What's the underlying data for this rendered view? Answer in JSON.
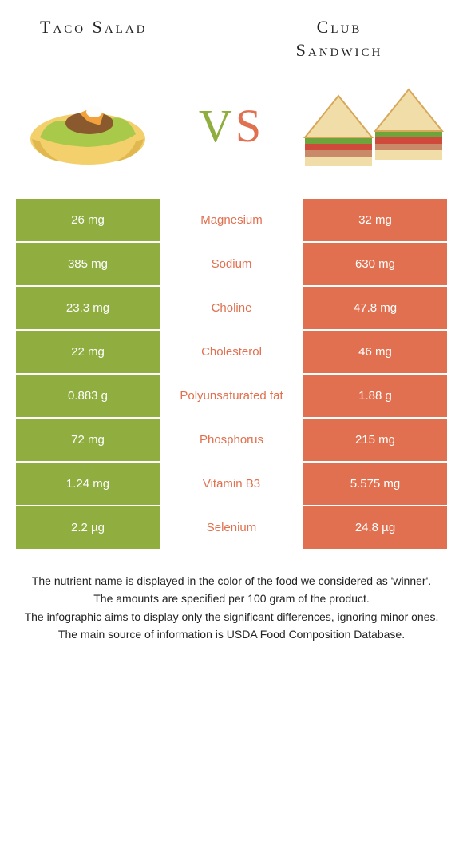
{
  "foods": {
    "left_title": "Taco Salad",
    "right_title": "Club\nSandwich"
  },
  "vs": {
    "v": "V",
    "s": "S"
  },
  "colors": {
    "green": "#8fae3f",
    "orange": "#e0704f",
    "mid_bg": "#ffffff",
    "taco_shell": "#f3d06b",
    "taco_lettuce": "#a8c94a",
    "taco_meat": "#8a5a2e",
    "taco_cheese": "#f3a13a",
    "taco_cream": "#fdfdfb",
    "bread": "#f0dda8",
    "bread_crust": "#d8a85a",
    "lettuce": "#6fa33b",
    "tomato": "#cf4a3a",
    "meat": "#c98a6a"
  },
  "rows": [
    {
      "label": "Magnesium",
      "left": "26 mg",
      "right": "32 mg",
      "winner": "right"
    },
    {
      "label": "Sodium",
      "left": "385 mg",
      "right": "630 mg",
      "winner": "right"
    },
    {
      "label": "Choline",
      "left": "23.3 mg",
      "right": "47.8 mg",
      "winner": "right"
    },
    {
      "label": "Cholesterol",
      "left": "22 mg",
      "right": "46 mg",
      "winner": "right"
    },
    {
      "label": "Polyunsaturated fat",
      "left": "0.883 g",
      "right": "1.88 g",
      "winner": "right"
    },
    {
      "label": "Phosphorus",
      "left": "72 mg",
      "right": "215 mg",
      "winner": "right"
    },
    {
      "label": "Vitamin B3",
      "left": "1.24 mg",
      "right": "5.575 mg",
      "winner": "right"
    },
    {
      "label": "Selenium",
      "left": "2.2 µg",
      "right": "24.8 µg",
      "winner": "right"
    }
  ],
  "footnotes": [
    "The nutrient name is displayed in the color of the food we considered as 'winner'.",
    "The amounts are specified per 100 gram of the product.",
    "The infographic aims to display only the significant differences, ignoring minor ones.",
    "The main source of information is USDA Food Composition Database."
  ]
}
